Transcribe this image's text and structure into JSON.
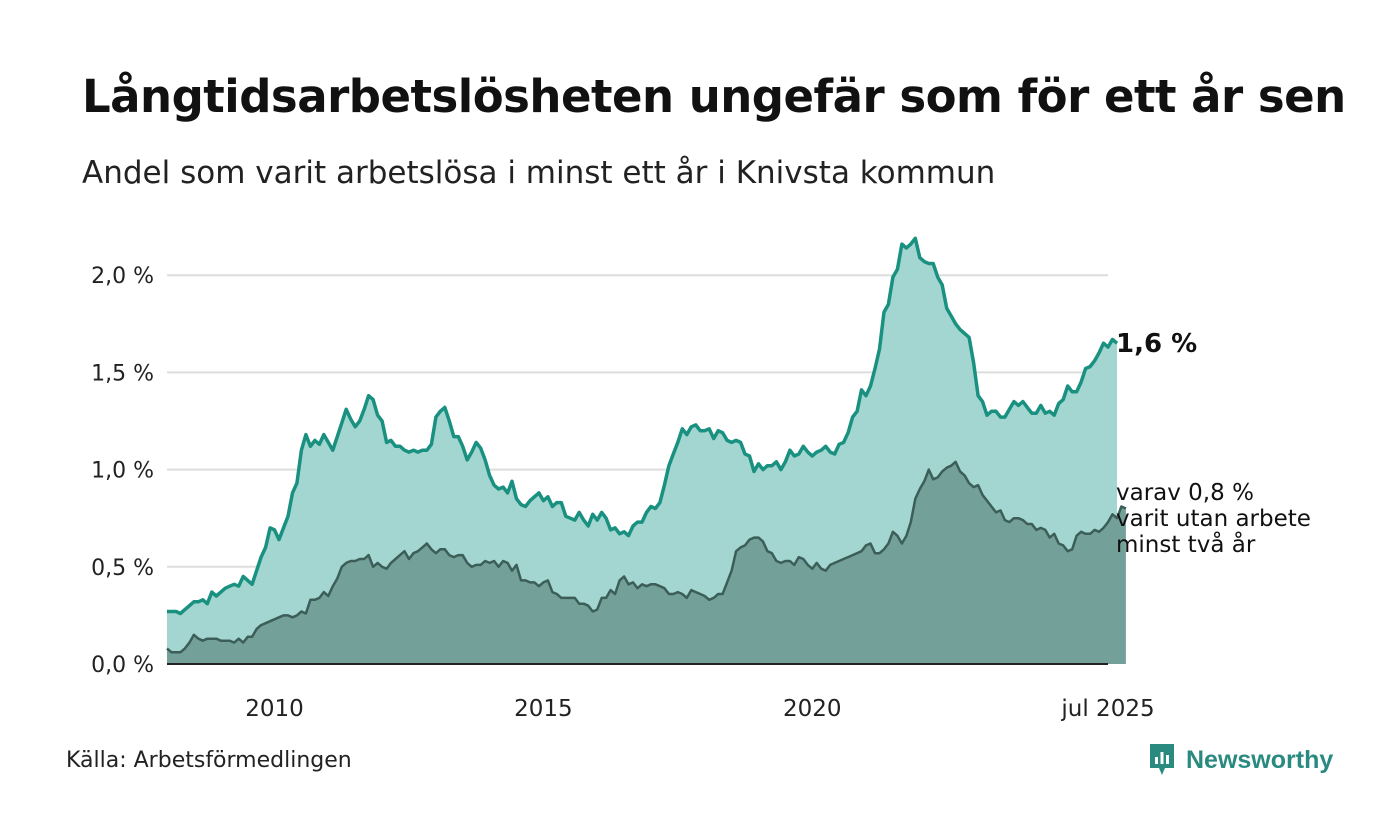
{
  "title": "Långtidsarbetslösheten ungefär som för ett år sen",
  "subtitle": "Andel som varit arbetslösa i minst ett år i Knivsta kommun",
  "source": "Källa: Arbetsförmedlingen",
  "brand": "Newsworthy",
  "colors": {
    "series_total_line": "#1a9180",
    "series_total_fill": "#a3d6d0",
    "series_long_line": "#3c5e58",
    "series_long_fill": "#73a199",
    "grid": "#dddddd",
    "brand": "#2a8a80"
  },
  "chart_data": {
    "type": "area",
    "x_start": "2008-01",
    "x_end": "2025-07",
    "x_frequency": "monthly",
    "x_tick_labels": [
      "2010",
      "2015",
      "2020",
      "jul 2025"
    ],
    "y_tick_labels": [
      "0,0 %",
      "0,5 %",
      "1,0 %",
      "1,5 %",
      "2,0 %"
    ],
    "y_ticks": [
      0,
      0.5,
      1.0,
      1.5,
      2.0
    ],
    "ylim": [
      0,
      2.2
    ],
    "grid": true,
    "series": [
      {
        "values": [
          0.27,
          0.27,
          0.27,
          0.26,
          0.28,
          0.3,
          0.32,
          0.32,
          0.33,
          0.31,
          0.37,
          0.35,
          0.37,
          0.39,
          0.4,
          0.41,
          0.4,
          0.45,
          0.43,
          0.41,
          0.48,
          0.55,
          0.6,
          0.7,
          0.69,
          0.64,
          0.7,
          0.76,
          0.88,
          0.93,
          1.1,
          1.18,
          1.12,
          1.15,
          1.13,
          1.18,
          1.14,
          1.1,
          1.17,
          1.24,
          1.31,
          1.26,
          1.22,
          1.25,
          1.31,
          1.38,
          1.36,
          1.28,
          1.25,
          1.14,
          1.15,
          1.12,
          1.12,
          1.1,
          1.09,
          1.1,
          1.09,
          1.1,
          1.1,
          1.13,
          1.27,
          1.3,
          1.32,
          1.25,
          1.17,
          1.17,
          1.12,
          1.05,
          1.09,
          1.14,
          1.11,
          1.05,
          0.97,
          0.92,
          0.9,
          0.91,
          0.88,
          0.94,
          0.85,
          0.82,
          0.81,
          0.84,
          0.86,
          0.88,
          0.84,
          0.86,
          0.81,
          0.83,
          0.83,
          0.76,
          0.75,
          0.74,
          0.78,
          0.74,
          0.71,
          0.77,
          0.74,
          0.78,
          0.75,
          0.69,
          0.7,
          0.67,
          0.68,
          0.66,
          0.71,
          0.73,
          0.73,
          0.78,
          0.81,
          0.8,
          0.83,
          0.92,
          1.02,
          1.08,
          1.14,
          1.21,
          1.18,
          1.22,
          1.23,
          1.2,
          1.2,
          1.21,
          1.16,
          1.2,
          1.19,
          1.15,
          1.14,
          1.15,
          1.14,
          1.08,
          1.07,
          0.99,
          1.03,
          1.0,
          1.02,
          1.02,
          1.04,
          1.0,
          1.04,
          1.1,
          1.07,
          1.08,
          1.12,
          1.09,
          1.07,
          1.09,
          1.1,
          1.12,
          1.09,
          1.08,
          1.13,
          1.14,
          1.19,
          1.27,
          1.3,
          1.41,
          1.38,
          1.43,
          1.52,
          1.62,
          1.81,
          1.85,
          1.99,
          2.03,
          2.16,
          2.14,
          2.16,
          2.19,
          2.09,
          2.07,
          2.06,
          2.06,
          1.99,
          1.95,
          1.83,
          1.79,
          1.75,
          1.72,
          1.7,
          1.68,
          1.55,
          1.38,
          1.35,
          1.28,
          1.3,
          1.3,
          1.27,
          1.27,
          1.31,
          1.35,
          1.33,
          1.35,
          1.32,
          1.29,
          1.29,
          1.33,
          1.29,
          1.3,
          1.28,
          1.34,
          1.36,
          1.43,
          1.4,
          1.4,
          1.45,
          1.52,
          1.53,
          1.56,
          1.6,
          1.65,
          1.63,
          1.67,
          1.65
        ]
      },
      {
        "values": [
          0.08,
          0.06,
          0.06,
          0.06,
          0.08,
          0.11,
          0.15,
          0.13,
          0.12,
          0.13,
          0.13,
          0.13,
          0.12,
          0.12,
          0.12,
          0.11,
          0.13,
          0.11,
          0.14,
          0.14,
          0.18,
          0.2,
          0.21,
          0.22,
          0.23,
          0.24,
          0.25,
          0.25,
          0.24,
          0.25,
          0.27,
          0.26,
          0.33,
          0.33,
          0.34,
          0.37,
          0.35,
          0.4,
          0.44,
          0.5,
          0.52,
          0.53,
          0.53,
          0.54,
          0.54,
          0.56,
          0.5,
          0.52,
          0.5,
          0.49,
          0.52,
          0.54,
          0.56,
          0.58,
          0.54,
          0.57,
          0.58,
          0.6,
          0.62,
          0.59,
          0.57,
          0.59,
          0.59,
          0.56,
          0.55,
          0.56,
          0.56,
          0.52,
          0.5,
          0.51,
          0.51,
          0.53,
          0.52,
          0.53,
          0.5,
          0.53,
          0.52,
          0.48,
          0.51,
          0.43,
          0.43,
          0.42,
          0.42,
          0.4,
          0.42,
          0.43,
          0.37,
          0.36,
          0.34,
          0.34,
          0.34,
          0.34,
          0.31,
          0.31,
          0.3,
          0.27,
          0.28,
          0.34,
          0.34,
          0.38,
          0.36,
          0.43,
          0.45,
          0.41,
          0.42,
          0.39,
          0.41,
          0.4,
          0.41,
          0.41,
          0.4,
          0.39,
          0.36,
          0.36,
          0.37,
          0.36,
          0.34,
          0.38,
          0.37,
          0.36,
          0.35,
          0.33,
          0.34,
          0.36,
          0.36,
          0.42,
          0.48,
          0.58,
          0.6,
          0.61,
          0.64,
          0.65,
          0.65,
          0.63,
          0.58,
          0.57,
          0.53,
          0.52,
          0.53,
          0.53,
          0.51,
          0.55,
          0.54,
          0.51,
          0.49,
          0.52,
          0.49,
          0.48,
          0.51,
          0.52,
          0.53,
          0.54,
          0.55,
          0.56,
          0.57,
          0.58,
          0.61,
          0.62,
          0.57,
          0.57,
          0.59,
          0.62,
          0.68,
          0.66,
          0.62,
          0.66,
          0.73,
          0.85,
          0.9,
          0.94,
          1.0,
          0.95,
          0.96,
          0.99,
          1.01,
          1.02,
          1.04,
          0.99,
          0.97,
          0.93,
          0.91,
          0.92,
          0.87,
          0.84,
          0.81,
          0.78,
          0.79,
          0.74,
          0.73,
          0.75,
          0.75,
          0.74,
          0.72,
          0.72,
          0.69,
          0.7,
          0.69,
          0.65,
          0.67,
          0.62,
          0.61,
          0.58,
          0.59,
          0.66,
          0.68,
          0.67,
          0.67,
          0.69,
          0.68,
          0.7,
          0.73,
          0.77,
          0.75,
          0.81,
          0.8
        ]
      }
    ],
    "annotations": {
      "last_total": "1,6 %",
      "last_long_lines": [
        "varav 0,8 %",
        "varit utan arbete",
        "minst två år"
      ]
    }
  }
}
